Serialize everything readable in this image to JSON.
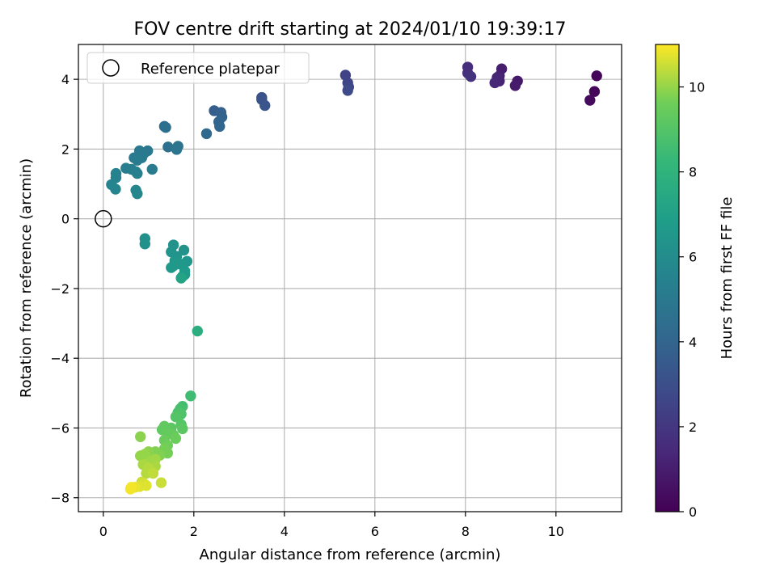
{
  "chart_data": {
    "type": "scatter",
    "title": "FOV centre drift starting at 2024/01/10 19:39:17",
    "xlabel": "Angular distance from reference (arcmin)",
    "ylabel": "Rotation from reference (arcmin)",
    "xlim": [
      -0.55,
      11.45
    ],
    "ylim": [
      -8.4,
      5.0
    ],
    "xticks": [
      0,
      2,
      4,
      6,
      8,
      10
    ],
    "yticks": [
      -8,
      -6,
      -4,
      -2,
      0,
      2,
      4
    ],
    "grid": true,
    "legend": {
      "placement": "top-left",
      "entries": [
        {
          "label": "Reference platepar",
          "marker": "hollow-circle"
        }
      ]
    },
    "reference_point": {
      "x": 0,
      "y": 0
    },
    "colorbar": {
      "label": "Hours from first FF file",
      "min": 0,
      "max": 11,
      "ticks": [
        0,
        2,
        4,
        6,
        8,
        10
      ],
      "colormap": "viridis"
    },
    "point_fields": [
      "x",
      "y",
      "hours"
    ],
    "points": [
      [
        10.9,
        4.1,
        0.1
      ],
      [
        10.85,
        3.65,
        0.2
      ],
      [
        10.75,
        3.4,
        0.3
      ],
      [
        9.15,
        3.95,
        0.8
      ],
      [
        9.1,
        3.82,
        0.9
      ],
      [
        8.8,
        4.3,
        1.0
      ],
      [
        8.75,
        4.1,
        1.1
      ],
      [
        8.75,
        3.95,
        1.2
      ],
      [
        8.7,
        4.05,
        1.3
      ],
      [
        8.65,
        3.9,
        1.4
      ],
      [
        8.05,
        4.35,
        1.6
      ],
      [
        8.05,
        4.18,
        1.7
      ],
      [
        8.12,
        4.08,
        1.8
      ],
      [
        5.35,
        4.12,
        2.5
      ],
      [
        5.4,
        3.9,
        2.6
      ],
      [
        5.42,
        3.78,
        2.7
      ],
      [
        5.4,
        3.68,
        2.8
      ],
      [
        3.5,
        3.48,
        3.1
      ],
      [
        3.5,
        3.42,
        3.2
      ],
      [
        3.57,
        3.25,
        3.3
      ],
      [
        2.45,
        3.1,
        3.7
      ],
      [
        2.6,
        3.05,
        3.8
      ],
      [
        2.62,
        2.92,
        3.9
      ],
      [
        2.55,
        2.78,
        4.0
      ],
      [
        2.57,
        2.65,
        4.1
      ],
      [
        2.28,
        2.44,
        4.2
      ],
      [
        1.35,
        2.65,
        4.4
      ],
      [
        1.38,
        2.62,
        4.5
      ],
      [
        1.43,
        2.06,
        4.6
      ],
      [
        1.65,
        2.08,
        4.7
      ],
      [
        1.62,
        1.99,
        4.8
      ],
      [
        0.98,
        1.95,
        4.9
      ],
      [
        0.8,
        1.95,
        5.0
      ],
      [
        0.9,
        1.88,
        5.0
      ],
      [
        0.85,
        1.75,
        5.1
      ],
      [
        0.68,
        1.75,
        5.1
      ],
      [
        0.75,
        1.68,
        5.2
      ],
      [
        1.08,
        1.42,
        5.2
      ],
      [
        0.5,
        1.45,
        5.3
      ],
      [
        0.62,
        1.42,
        5.3
      ],
      [
        0.72,
        1.35,
        5.4
      ],
      [
        0.75,
        1.3,
        5.4
      ],
      [
        0.28,
        1.3,
        5.5
      ],
      [
        0.28,
        1.18,
        5.5
      ],
      [
        0.18,
        0.98,
        5.6
      ],
      [
        0.27,
        0.85,
        5.6
      ],
      [
        0.72,
        0.82,
        5.7
      ],
      [
        0.75,
        0.72,
        5.7
      ],
      [
        0.92,
        -0.57,
        6.2
      ],
      [
        0.92,
        -0.72,
        6.2
      ],
      [
        1.55,
        -0.75,
        6.3
      ],
      [
        1.78,
        -0.9,
        6.3
      ],
      [
        1.5,
        -0.95,
        6.4
      ],
      [
        1.62,
        -1.08,
        6.4
      ],
      [
        1.58,
        -1.2,
        6.5
      ],
      [
        1.85,
        -1.22,
        6.5
      ],
      [
        1.7,
        -1.3,
        6.6
      ],
      [
        1.55,
        -1.35,
        6.6
      ],
      [
        1.5,
        -1.4,
        6.6
      ],
      [
        1.8,
        -1.5,
        6.7
      ],
      [
        1.8,
        -1.6,
        6.7
      ],
      [
        1.75,
        -1.65,
        6.8
      ],
      [
        1.72,
        -1.7,
        7.2
      ],
      [
        2.08,
        -3.22,
        7.7
      ],
      [
        1.93,
        -5.08,
        8.5
      ],
      [
        1.75,
        -5.38,
        8.6
      ],
      [
        1.7,
        -5.45,
        8.7
      ],
      [
        1.65,
        -5.55,
        8.8
      ],
      [
        1.72,
        -5.6,
        8.9
      ],
      [
        1.6,
        -5.68,
        9.0
      ],
      [
        1.72,
        -5.9,
        9.1
      ],
      [
        1.75,
        -6.02,
        9.2
      ],
      [
        1.5,
        -6.0,
        9.2
      ],
      [
        1.35,
        -5.95,
        9.3
      ],
      [
        1.3,
        -6.05,
        9.3
      ],
      [
        1.42,
        -6.15,
        9.4
      ],
      [
        1.55,
        -6.2,
        9.4
      ],
      [
        1.6,
        -6.3,
        9.5
      ],
      [
        1.35,
        -6.35,
        9.5
      ],
      [
        1.42,
        -6.5,
        9.6
      ],
      [
        1.35,
        -6.6,
        9.7
      ],
      [
        1.42,
        -6.72,
        9.7
      ],
      [
        1.15,
        -6.68,
        9.8
      ],
      [
        1.25,
        -6.78,
        9.8
      ],
      [
        1.0,
        -6.68,
        9.9
      ],
      [
        0.82,
        -6.25,
        9.9
      ],
      [
        0.92,
        -6.75,
        10.0
      ],
      [
        0.82,
        -6.8,
        10.0
      ],
      [
        1.15,
        -6.9,
        10.1
      ],
      [
        1.05,
        -6.95,
        10.1
      ],
      [
        0.88,
        -7.05,
        10.2
      ],
      [
        1.15,
        -7.1,
        10.2
      ],
      [
        1.0,
        -7.15,
        10.3
      ],
      [
        0.95,
        -7.3,
        10.3
      ],
      [
        1.1,
        -7.3,
        10.4
      ],
      [
        1.28,
        -7.57,
        10.5
      ],
      [
        0.85,
        -7.55,
        10.5
      ],
      [
        0.9,
        -7.6,
        10.6
      ],
      [
        0.95,
        -7.65,
        10.7
      ],
      [
        0.8,
        -7.68,
        10.7
      ],
      [
        0.7,
        -7.7,
        10.8
      ],
      [
        0.62,
        -7.7,
        10.9
      ],
      [
        0.6,
        -7.75,
        10.9
      ]
    ]
  }
}
